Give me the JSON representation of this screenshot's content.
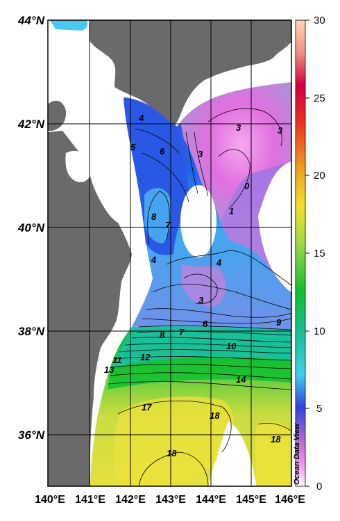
{
  "map": {
    "lat_labels": [
      "44°N",
      "42°N",
      "40°N",
      "38°N",
      "36°N"
    ],
    "lon_labels": [
      "140°E",
      "141°E",
      "142°E",
      "143°E",
      "144°E",
      "145°E",
      "146°E"
    ],
    "lon_range": [
      140,
      146
    ],
    "lat_range": [
      35,
      44
    ],
    "colors": {
      "land": "#6a6a6a",
      "grid": "#000000",
      "no_data": "#ffffff"
    }
  },
  "colorbar": {
    "min": 0,
    "max": 30,
    "ticks": [
      "0",
      "5",
      "10",
      "15",
      "20",
      "25",
      "30"
    ],
    "credit": "Ocean Data View",
    "stops": [
      "#ffffff",
      "#f3a0f3",
      "#c070d0",
      "#3040e0",
      "#40d0f0",
      "#18c090",
      "#10c030",
      "#a0d840",
      "#f0e030",
      "#f0a020",
      "#f03020",
      "#d00040",
      "#f09080",
      "#ffd8b0"
    ]
  },
  "contour_labels": [
    {
      "text": "4"
    },
    {
      "text": "5"
    },
    {
      "text": "6"
    },
    {
      "text": "3"
    },
    {
      "text": "3"
    },
    {
      "text": "3"
    },
    {
      "text": "0"
    },
    {
      "text": "1"
    },
    {
      "text": "8"
    },
    {
      "text": "7"
    },
    {
      "text": "4"
    },
    {
      "text": "4"
    },
    {
      "text": "3"
    },
    {
      "text": "8"
    },
    {
      "text": "7"
    },
    {
      "text": "6"
    },
    {
      "text": "9"
    },
    {
      "text": "10"
    },
    {
      "text": "11"
    },
    {
      "text": "12"
    },
    {
      "text": "13"
    },
    {
      "text": "14"
    },
    {
      "text": "17"
    },
    {
      "text": "18"
    },
    {
      "text": "18"
    },
    {
      "text": "18"
    }
  ]
}
